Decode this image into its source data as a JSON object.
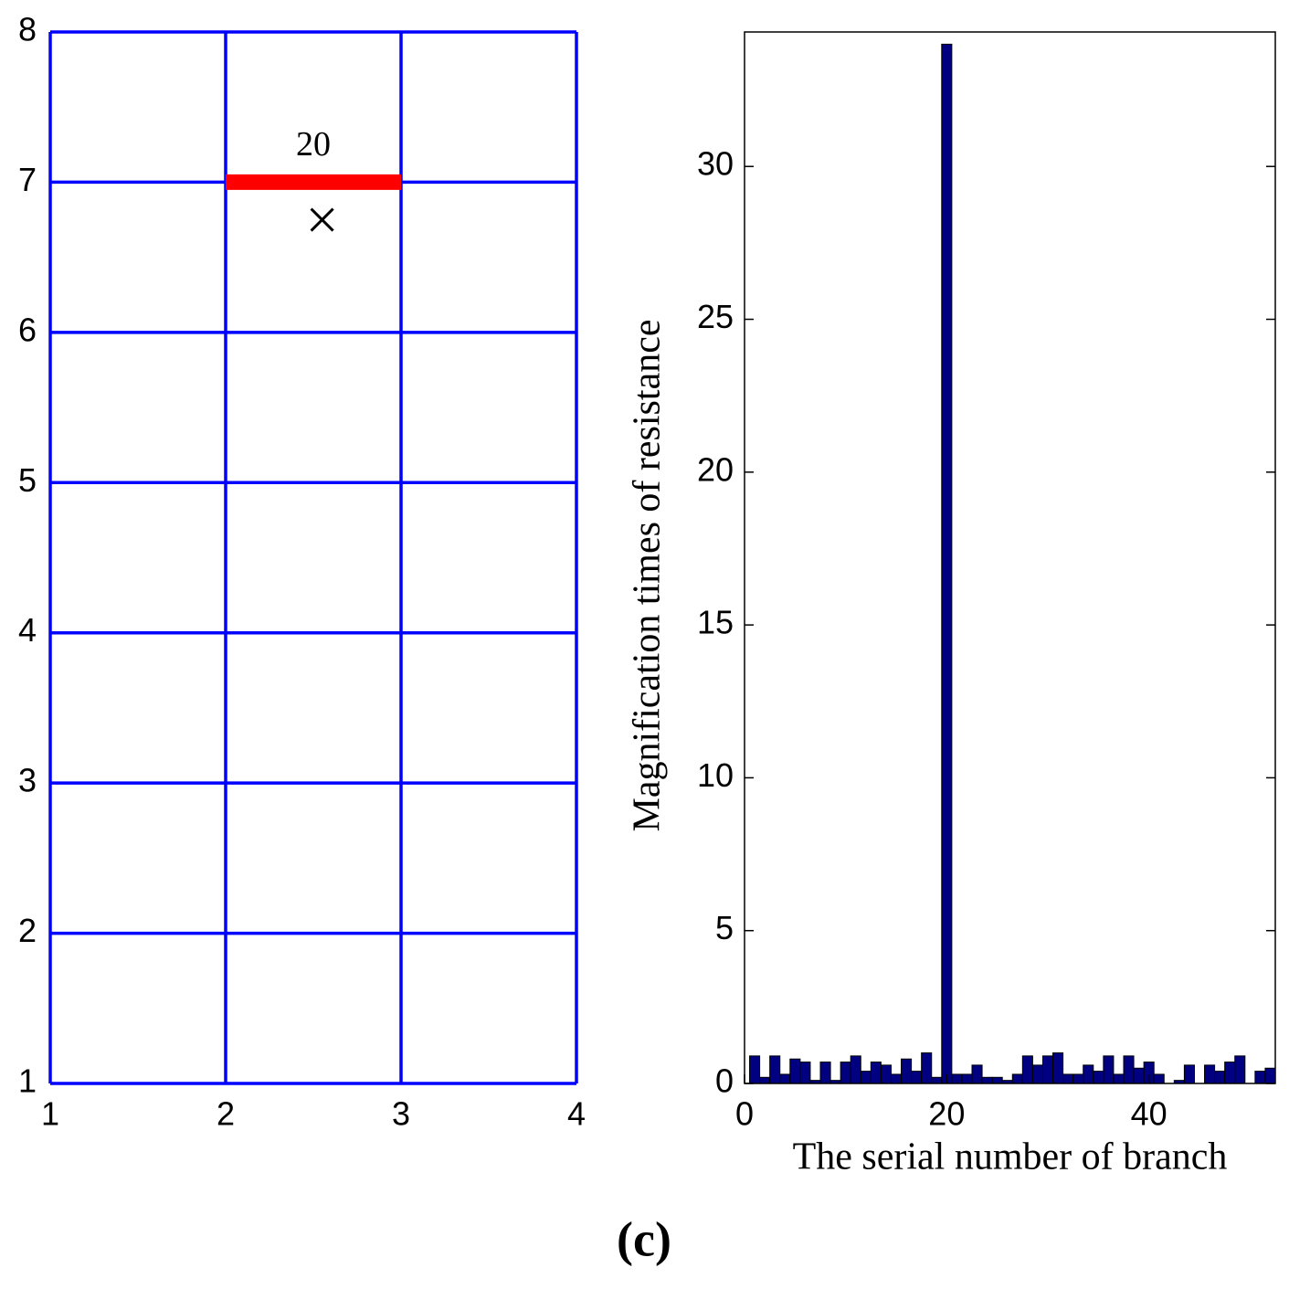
{
  "chart_data": [
    {
      "type": "network",
      "xlim": [
        1,
        4
      ],
      "ylim": [
        1,
        8
      ],
      "xticks": [
        1,
        2,
        3,
        4
      ],
      "yticks": [
        1,
        2,
        3,
        4,
        5,
        6,
        7,
        8
      ],
      "grid": true,
      "grid_color": "#0000ff",
      "highlight": {
        "label": "20",
        "x": [
          2,
          3
        ],
        "y": [
          7,
          7
        ],
        "color": "#ff0000"
      },
      "marker": {
        "x": 2.55,
        "y": 6.75,
        "color": "#000000"
      }
    },
    {
      "type": "bar",
      "xlabel": "The serial number of branch",
      "ylabel": "Magnification times of resistance",
      "xlim": [
        0,
        52.5
      ],
      "ylim": [
        0,
        34.4
      ],
      "xticks": [
        0,
        20,
        40
      ],
      "yticks": [
        0,
        5,
        10,
        15,
        20,
        25,
        30
      ],
      "color": "#000080",
      "x": [
        1,
        2,
        3,
        4,
        5,
        6,
        7,
        8,
        9,
        10,
        11,
        12,
        13,
        14,
        15,
        16,
        17,
        18,
        19,
        20,
        21,
        22,
        23,
        24,
        25,
        26,
        27,
        28,
        29,
        30,
        31,
        32,
        33,
        34,
        35,
        36,
        37,
        38,
        39,
        40,
        41,
        42,
        43,
        44,
        45,
        46,
        47,
        48,
        49,
        50,
        51,
        52
      ],
      "values": [
        0.9,
        0.2,
        0.9,
        0.3,
        0.8,
        0.7,
        0.1,
        0.7,
        0.1,
        0.7,
        0.9,
        0.4,
        0.7,
        0.6,
        0.3,
        0.8,
        0.4,
        1.0,
        0.2,
        34,
        0.3,
        0.3,
        0.6,
        0.2,
        0.2,
        0.1,
        0.3,
        0.9,
        0.6,
        0.9,
        1.0,
        0.3,
        0.3,
        0.6,
        0.4,
        0.9,
        0.3,
        0.9,
        0.5,
        0.7,
        0.3,
        0.0,
        0.1,
        0.6,
        0.0,
        0.6,
        0.4,
        0.7,
        0.9,
        0.0,
        0.4,
        0.5
      ]
    }
  ],
  "caption": "(c)"
}
